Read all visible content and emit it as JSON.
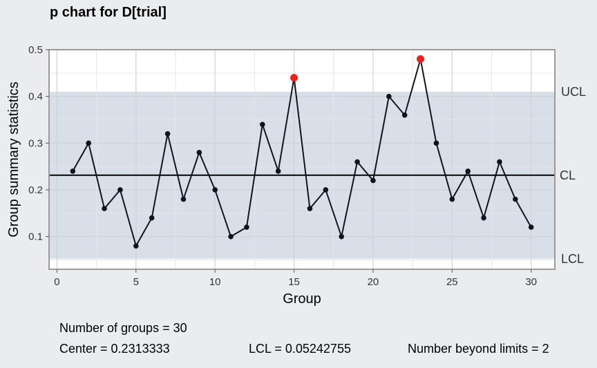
{
  "chart_data": {
    "type": "line",
    "title": "p chart for D[trial]",
    "xlabel": "Group",
    "ylabel": "Group summary statistics",
    "xlim": [
      -0.5,
      31.5
    ],
    "ylim": [
      0.03,
      0.5
    ],
    "x_ticks": [
      "0",
      "5",
      "10",
      "15",
      "20",
      "25",
      "30"
    ],
    "y_ticks": [
      "0.1",
      "0.2",
      "0.3",
      "0.4",
      "0.5"
    ],
    "grid": true,
    "x": [
      1,
      2,
      3,
      4,
      5,
      6,
      7,
      8,
      9,
      10,
      11,
      12,
      13,
      14,
      15,
      16,
      17,
      18,
      19,
      20,
      21,
      22,
      23,
      24,
      25,
      26,
      27,
      28,
      29,
      30
    ],
    "values": [
      0.24,
      0.3,
      0.16,
      0.2,
      0.08,
      0.14,
      0.32,
      0.18,
      0.28,
      0.2,
      0.1,
      0.12,
      0.34,
      0.24,
      0.44,
      0.16,
      0.2,
      0.1,
      0.26,
      0.22,
      0.4,
      0.36,
      0.48,
      0.3,
      0.18,
      0.24,
      0.14,
      0.26,
      0.18,
      0.12
    ],
    "center": 0.2313333,
    "ucl": 0.41,
    "lcl": 0.05242755,
    "limit_labels": {
      "ucl": "UCL",
      "cl": "CL",
      "lcl": "LCL"
    },
    "beyond_limits_groups": [
      15,
      23
    ],
    "colors": {
      "background": "#ebecf0",
      "panel": "#ffffff",
      "band": "#d9dfe8",
      "line": "#10141c",
      "point": "#10141c",
      "violation": "#e8231b",
      "grid": "#dcdcdc"
    }
  },
  "stats": {
    "groups": "Number of groups = 30",
    "center": "Center = 0.2313333",
    "lcl": "LCL = 0.05242755",
    "beyond": "Number beyond limits = 2"
  }
}
